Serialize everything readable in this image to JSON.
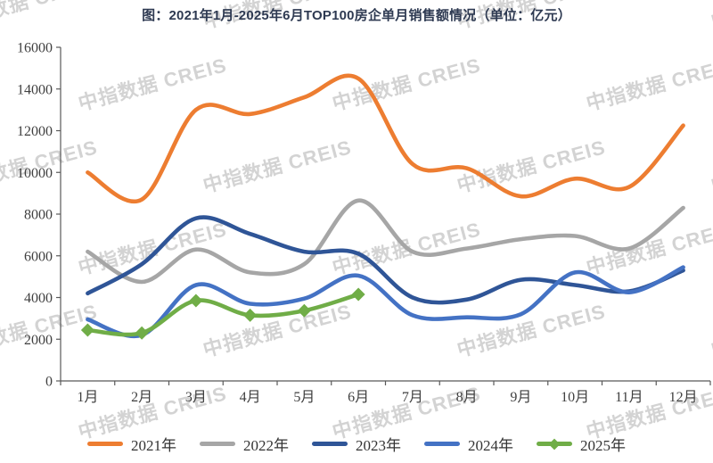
{
  "title": "图：2021年1月-2025年6月TOP100房企单月销售额情况（单位：亿元）",
  "watermark": {
    "text": "中指数据 CREIS",
    "color": "#cccccc"
  },
  "axis_color": "#595959",
  "label_color": "#3f3f3f",
  "chart_data": {
    "type": "line",
    "smooth": true,
    "grid": false,
    "legend_position": "bottom",
    "categories": [
      "1月",
      "2月",
      "3月",
      "4月",
      "5月",
      "6月",
      "7月",
      "8月",
      "9月",
      "10月",
      "11月",
      "12月"
    ],
    "ylim": [
      0,
      16000
    ],
    "ytick_step": 2000,
    "ytick_labels": [
      "0",
      "2000",
      "4000",
      "6000",
      "8000",
      "10000",
      "12000",
      "14000",
      "16000"
    ],
    "ylabel": "",
    "xlabel": "",
    "series": [
      {
        "name": "2021年",
        "color": "#ED7D31",
        "marker": "none",
        "values": [
          10000,
          8700,
          13000,
          12800,
          13600,
          14500,
          10400,
          10200,
          8850,
          9700,
          9300,
          12250
        ]
      },
      {
        "name": "2022年",
        "color": "#A6A6A6",
        "marker": "none",
        "values": [
          6200,
          4750,
          6300,
          5200,
          5600,
          8650,
          6200,
          6350,
          6800,
          6950,
          6350,
          8300
        ]
      },
      {
        "name": "2023年",
        "color": "#2F5597",
        "marker": "none",
        "values": [
          4200,
          5600,
          7800,
          7050,
          6200,
          6100,
          4000,
          3900,
          4850,
          4600,
          4300,
          5300
        ]
      },
      {
        "name": "2024年",
        "color": "#4472C4",
        "marker": "none",
        "values": [
          2950,
          2200,
          4600,
          3700,
          3950,
          5050,
          3150,
          3050,
          3200,
          5200,
          4250,
          5450
        ]
      },
      {
        "name": "2025年",
        "color": "#70AD47",
        "marker": "diamond",
        "values": [
          2440,
          2300,
          3850,
          3150,
          3370,
          4150
        ]
      }
    ]
  }
}
